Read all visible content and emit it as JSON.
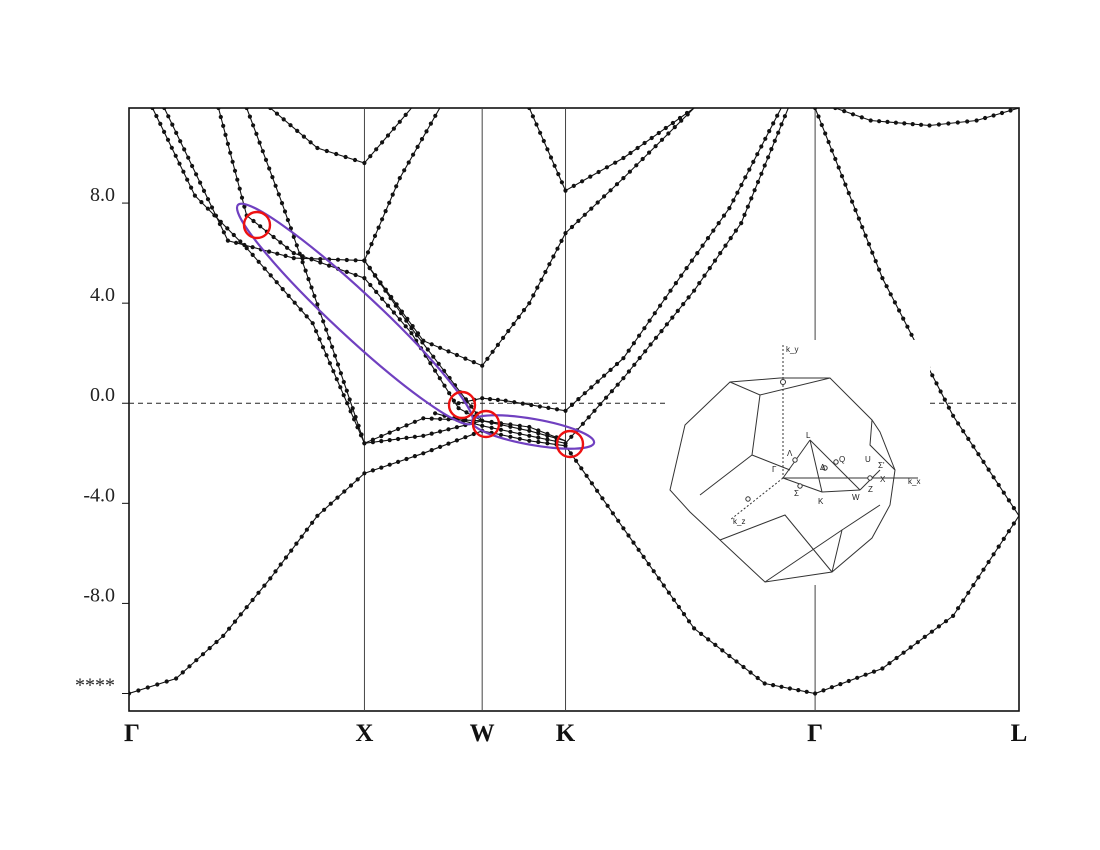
{
  "chart_data": {
    "type": "line",
    "title": "",
    "xlabel": "",
    "ylabel": "",
    "x_ticks": [
      {
        "label": "Γ",
        "x": 0
      },
      {
        "label": "X",
        "x": 1
      },
      {
        "label": "W",
        "x": 1.5
      },
      {
        "label": "K",
        "x": 1.854
      },
      {
        "label": "Γ",
        "x": 2.914
      },
      {
        "label": "L",
        "x": 3.78
      }
    ],
    "y_ticks": [
      {
        "label": "8.0",
        "y": 8
      },
      {
        "label": "4.0",
        "y": 4
      },
      {
        "label": "0.0",
        "y": 0
      },
      {
        "label": "-4.0",
        "y": -4
      },
      {
        "label": "-8.0",
        "y": -8
      },
      {
        "label": "****",
        "y": -11.6
      }
    ],
    "xlim": [
      0,
      3.78
    ],
    "ylim": [
      -12.3,
      11.8
    ],
    "fermi_level": 0,
    "series": [
      {
        "values": [
          [
            0,
            -11.6
          ],
          [
            0.2,
            -11.0
          ],
          [
            0.4,
            -9.3
          ],
          [
            0.6,
            -7.0
          ],
          [
            0.8,
            -4.5
          ],
          [
            1.0,
            -2.8
          ],
          [
            1.25,
            -2.0
          ],
          [
            1.5,
            -1.1
          ],
          [
            1.7,
            -1.5
          ],
          [
            1.854,
            -1.7
          ],
          [
            2.1,
            -5.0
          ],
          [
            2.4,
            -9.0
          ],
          [
            2.7,
            -11.2
          ],
          [
            2.914,
            -11.6
          ],
          [
            3.2,
            -10.6
          ],
          [
            3.5,
            -8.5
          ],
          [
            3.78,
            -4.5
          ]
        ]
      },
      {
        "values": [
          [
            0.1,
            11.8
          ],
          [
            0.28,
            8.3
          ],
          [
            0.5,
            6.2
          ],
          [
            0.78,
            3.2
          ],
          [
            1.0,
            -1.6
          ],
          [
            1.25,
            -0.6
          ],
          [
            1.5,
            -0.7
          ],
          [
            1.7,
            -1.1
          ],
          [
            1.854,
            -1.5
          ]
        ]
      },
      {
        "values": [
          [
            0.15,
            11.8
          ],
          [
            0.42,
            6.5
          ],
          [
            0.7,
            5.8
          ],
          [
            1.0,
            5.7
          ],
          [
            1.2,
            3.0
          ],
          [
            1.5,
            -0.7
          ]
        ]
      },
      {
        "values": [
          [
            0.38,
            11.8
          ],
          [
            0.5,
            7.5
          ],
          [
            0.7,
            6.0
          ],
          [
            1.0,
            5.0
          ],
          [
            1.2,
            2.8
          ],
          [
            1.4,
            -0.2
          ],
          [
            1.5,
            -0.7
          ],
          [
            1.7,
            -0.95
          ],
          [
            1.854,
            -1.5
          ]
        ]
      },
      {
        "values": [
          [
            0.5,
            11.8
          ],
          [
            0.65,
            8.0
          ],
          [
            0.85,
            2.6
          ],
          [
            1.0,
            -1.6
          ],
          [
            1.25,
            -1.3
          ],
          [
            1.5,
            -0.7
          ]
        ]
      },
      {
        "values": [
          [
            0.6,
            11.8
          ],
          [
            0.8,
            10.2
          ],
          [
            1.0,
            9.6
          ],
          [
            1.2,
            11.8
          ]
        ]
      },
      {
        "values": [
          [
            1.0,
            5.7
          ],
          [
            1.25,
            2.5
          ],
          [
            1.5,
            1.5
          ],
          [
            1.7,
            4.0
          ],
          [
            1.854,
            6.8
          ],
          [
            2.1,
            9.0
          ],
          [
            2.4,
            11.8
          ]
        ]
      },
      {
        "values": [
          [
            1.0,
            5.7
          ],
          [
            1.15,
            9.0
          ],
          [
            1.32,
            11.8
          ]
        ]
      },
      {
        "values": [
          [
            1.4,
            0.0
          ],
          [
            1.5,
            0.2
          ],
          [
            1.6,
            0.1
          ],
          [
            1.854,
            -0.3
          ],
          [
            2.1,
            1.8
          ],
          [
            2.3,
            4.5
          ],
          [
            2.55,
            7.8
          ],
          [
            2.77,
            11.8
          ]
        ]
      },
      {
        "values": [
          [
            1.3,
            -0.4
          ],
          [
            1.5,
            -0.9
          ],
          [
            1.7,
            -1.3
          ],
          [
            1.854,
            -1.6
          ],
          [
            2.1,
            1.0
          ],
          [
            2.4,
            4.5
          ],
          [
            2.6,
            7.2
          ],
          [
            2.8,
            11.8
          ]
        ]
      },
      {
        "values": [
          [
            1.7,
            11.8
          ],
          [
            1.854,
            8.5
          ],
          [
            2.1,
            9.8
          ],
          [
            2.4,
            11.8
          ]
        ]
      },
      {
        "values": [
          [
            2.914,
            11.8
          ],
          [
            3.2,
            5.0
          ],
          [
            3.5,
            -0.5
          ],
          [
            3.78,
            -4.5
          ]
        ]
      },
      {
        "values": [
          [
            3.0,
            11.8
          ],
          [
            3.15,
            11.3
          ],
          [
            3.4,
            11.1
          ],
          [
            3.6,
            11.3
          ],
          [
            3.78,
            11.8
          ]
        ]
      }
    ],
    "highlights": {
      "color": "#ee1111",
      "ellipse_color": "#7040c0"
    },
    "inset": {
      "labels": [
        "k_y",
        "k_z",
        "k_x",
        "Γ",
        "L",
        "Λ",
        "U",
        "Σ'",
        "Q",
        "Δ",
        "Σ",
        "K",
        "W",
        "Z",
        "X"
      ]
    }
  }
}
